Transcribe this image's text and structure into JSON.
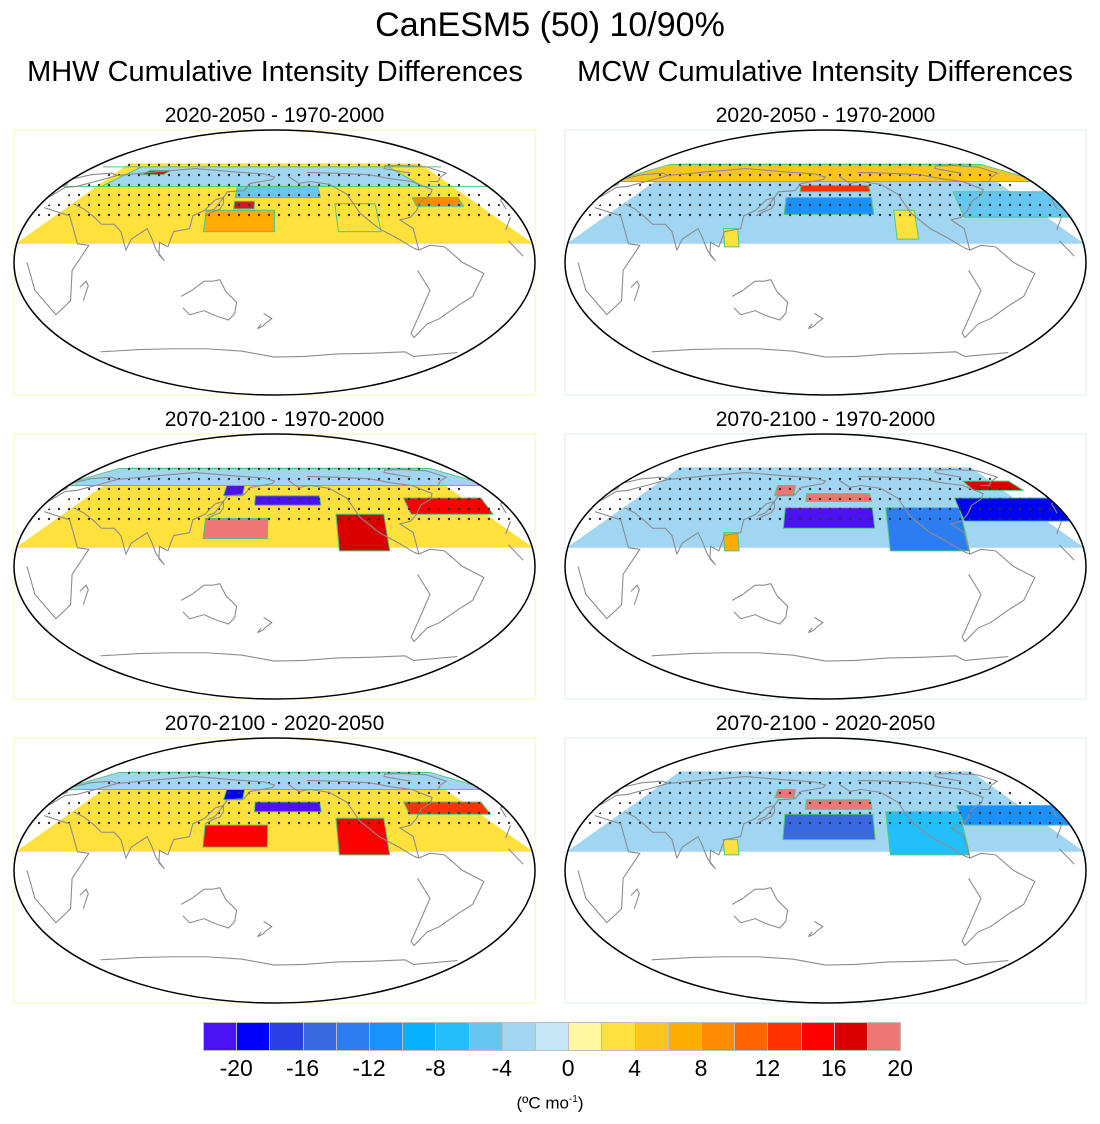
{
  "figure": {
    "title": "CanESM5 (50) 10/90%",
    "columns": [
      {
        "id": "mhw",
        "title": "MHW Cumulative Intensity Differences"
      },
      {
        "id": "mcw",
        "title": "MCW Cumulative Intensity Differences"
      }
    ],
    "units_prefix": "(ºC mo",
    "units_exp": "-1",
    "units_suffix": ")"
  },
  "chart_data": {
    "type": "heatmap",
    "description": "Global map panels (Pacific-centered, Robinson-like projection) of cumulative intensity differences; stippling marks significance; green contours outline regions; data shown only in Northern Hemisphere mid/high latitudes",
    "title": "CanESM5 (50) 10/90%",
    "colorbar": {
      "label": "(ºC mo-1)",
      "ticks": [
        -20,
        -16,
        -12,
        -8,
        -4,
        0,
        4,
        8,
        12,
        16,
        20
      ],
      "tick_labels": [
        "-20",
        "-16",
        "-12",
        "-8",
        "-4",
        "0",
        "4",
        "8",
        "12",
        "16",
        "20"
      ],
      "range": [
        -22,
        22
      ],
      "levels_count": 21,
      "colors": [
        "#4a12f5",
        "#0000fb",
        "#2840e6",
        "#3a68e0",
        "#2d7df2",
        "#1a92fd",
        "#06b2fe",
        "#23bffb",
        "#66c6f2",
        "#a0d6f1",
        "#c6e6f7",
        "#fff7a0",
        "#fee13d",
        "#fdc61f",
        "#feac00",
        "#fe8b00",
        "#fe6400",
        "#fe3300",
        "#fd0000",
        "#db0000",
        "#cf1b1b",
        "#ef7676"
      ]
    },
    "panels": [
      {
        "column": "mhw",
        "row": 1,
        "title": "2020-2050 - 1970-2000",
        "regions": [
          {
            "name": "north-atlantic-high-lat",
            "value": -3,
            "lon": [
              -60,
              40
            ],
            "lat": [
              55,
              80
            ]
          },
          {
            "name": "north-pacific-band",
            "value": -6,
            "lon": [
              150,
              215
            ],
            "lat": [
              45,
              55
            ]
          },
          {
            "name": "kuroshio-extension-max",
            "value": 18,
            "lon": [
              150,
              165
            ],
            "lat": [
              36,
              42
            ]
          },
          {
            "name": "subtropical-west-pacific",
            "value": 7,
            "lon": [
              130,
              180
            ],
            "lat": [
              20,
              35
            ]
          },
          {
            "name": "east-pacific-subtropics",
            "value": 2,
            "lon": [
              225,
              255
            ],
            "lat": [
              20,
              40
            ]
          },
          {
            "name": "atlantic-gulf-stream",
            "value": 8,
            "lon": [
              285,
              320
            ],
            "lat": [
              38,
              45
            ]
          },
          {
            "name": "barents-sea-max",
            "value": 18,
            "lon": [
              60,
              80
            ],
            "lat": [
              68,
              74
            ]
          }
        ]
      },
      {
        "column": "mcw",
        "row": 1,
        "title": "2020-2050 - 1970-2000",
        "regions": [
          {
            "name": "arctic-warm",
            "value": 4,
            "lon": [
              0,
              360
            ],
            "lat": [
              60,
              85
            ]
          },
          {
            "name": "north-pacific-jet-warm",
            "value": 12,
            "lon": [
              160,
              215
            ],
            "lat": [
              50,
              56
            ]
          },
          {
            "name": "north-pacific-cold",
            "value": -12,
            "lon": [
              150,
              215
            ],
            "lat": [
              32,
              45
            ]
          },
          {
            "name": "south-china-sea",
            "value": 2,
            "lon": [
              108,
              120
            ],
            "lat": [
              10,
              22
            ]
          },
          {
            "name": "california-current",
            "value": 2,
            "lon": [
              230,
              245
            ],
            "lat": [
              15,
              35
            ]
          },
          {
            "name": "north-atlantic-cold",
            "value": -6,
            "lon": [
              280,
              360
            ],
            "lat": [
              30,
              50
            ]
          }
        ]
      },
      {
        "column": "mhw",
        "row": 2,
        "title": "2070-2100 - 1970-2000",
        "regions": [
          {
            "name": "north-pacific-cold-max",
            "value": -22,
            "lon": [
              165,
              215
            ],
            "lat": [
              42,
              50
            ]
          },
          {
            "name": "okhotsk-cold",
            "value": -22,
            "lon": [
              140,
              155
            ],
            "lat": [
              50,
              60
            ]
          },
          {
            "name": "west-pacific-warm-max",
            "value": 20,
            "lon": [
              130,
              175
            ],
            "lat": [
              18,
              32
            ]
          },
          {
            "name": "east-pacific-warm",
            "value": 16,
            "lon": [
              225,
              260
            ],
            "lat": [
              10,
              35
            ]
          },
          {
            "name": "atlantic-warm",
            "value": 14,
            "lon": [
              280,
              340
            ],
            "lat": [
              35,
              48
            ]
          },
          {
            "name": "arctic-mixed",
            "value": -4,
            "lon": [
              0,
              360
            ],
            "lat": [
              60,
              85
            ]
          }
        ]
      },
      {
        "column": "mcw",
        "row": 2,
        "title": "2070-2100 - 1970-2000",
        "regions": [
          {
            "name": "north-pacific-warm-max",
            "value": 22,
            "lon": [
              165,
              215
            ],
            "lat": [
              45,
              52
            ]
          },
          {
            "name": "okhotsk-warm",
            "value": 22,
            "lon": [
              140,
              155
            ],
            "lat": [
              50,
              60
            ]
          },
          {
            "name": "subtropical-pacific-cold",
            "value": -22,
            "lon": [
              150,
              215
            ],
            "lat": [
              25,
              40
            ]
          },
          {
            "name": "east-pacific-cold",
            "value": -14,
            "lon": [
              225,
              280
            ],
            "lat": [
              10,
              40
            ]
          },
          {
            "name": "atlantic-cold",
            "value": -20,
            "lon": [
              280,
              360
            ],
            "lat": [
              30,
              48
            ]
          },
          {
            "name": "south-china-sea-warm",
            "value": 6,
            "lon": [
              108,
              120
            ],
            "lat": [
              10,
              22
            ]
          },
          {
            "name": "labrador-warm",
            "value": 16,
            "lon": [
              300,
              340
            ],
            "lat": [
              55,
              65
            ]
          }
        ]
      },
      {
        "column": "mhw",
        "row": 3,
        "title": "2070-2100 - 2020-2050",
        "regions": [
          {
            "name": "north-pacific-cold-max",
            "value": -22,
            "lon": [
              165,
              215
            ],
            "lat": [
              40,
              48
            ]
          },
          {
            "name": "okhotsk-cold",
            "value": -20,
            "lon": [
              140,
              155
            ],
            "lat": [
              50,
              60
            ]
          },
          {
            "name": "west-pacific-warm",
            "value": 14,
            "lon": [
              130,
              175
            ],
            "lat": [
              15,
              30
            ]
          },
          {
            "name": "east-pacific-warm",
            "value": 14,
            "lon": [
              225,
              260
            ],
            "lat": [
              10,
              35
            ]
          },
          {
            "name": "atlantic-warm",
            "value": 12,
            "lon": [
              280,
              340
            ],
            "lat": [
              38,
              48
            ]
          },
          {
            "name": "arctic-mixed",
            "value": -4,
            "lon": [
              0,
              360
            ],
            "lat": [
              60,
              85
            ]
          }
        ]
      },
      {
        "column": "mcw",
        "row": 3,
        "title": "2070-2100 - 2020-2050",
        "regions": [
          {
            "name": "north-pacific-warm-max",
            "value": 22,
            "lon": [
              165,
              215
            ],
            "lat": [
              42,
              50
            ]
          },
          {
            "name": "okhotsk-warm",
            "value": 22,
            "lon": [
              140,
              155
            ],
            "lat": [
              52,
              60
            ]
          },
          {
            "name": "subtropical-pacific-cold",
            "value": -16,
            "lon": [
              150,
              215
            ],
            "lat": [
              20,
              38
            ]
          },
          {
            "name": "east-pacific-cold",
            "value": -8,
            "lon": [
              225,
              280
            ],
            "lat": [
              10,
              40
            ]
          },
          {
            "name": "atlantic-cold",
            "value": -12,
            "lon": [
              280,
              360
            ],
            "lat": [
              30,
              45
            ]
          },
          {
            "name": "south-china-sea-warm",
            "value": 2,
            "lon": [
              108,
              120
            ],
            "lat": [
              10,
              20
            ]
          }
        ]
      }
    ]
  }
}
